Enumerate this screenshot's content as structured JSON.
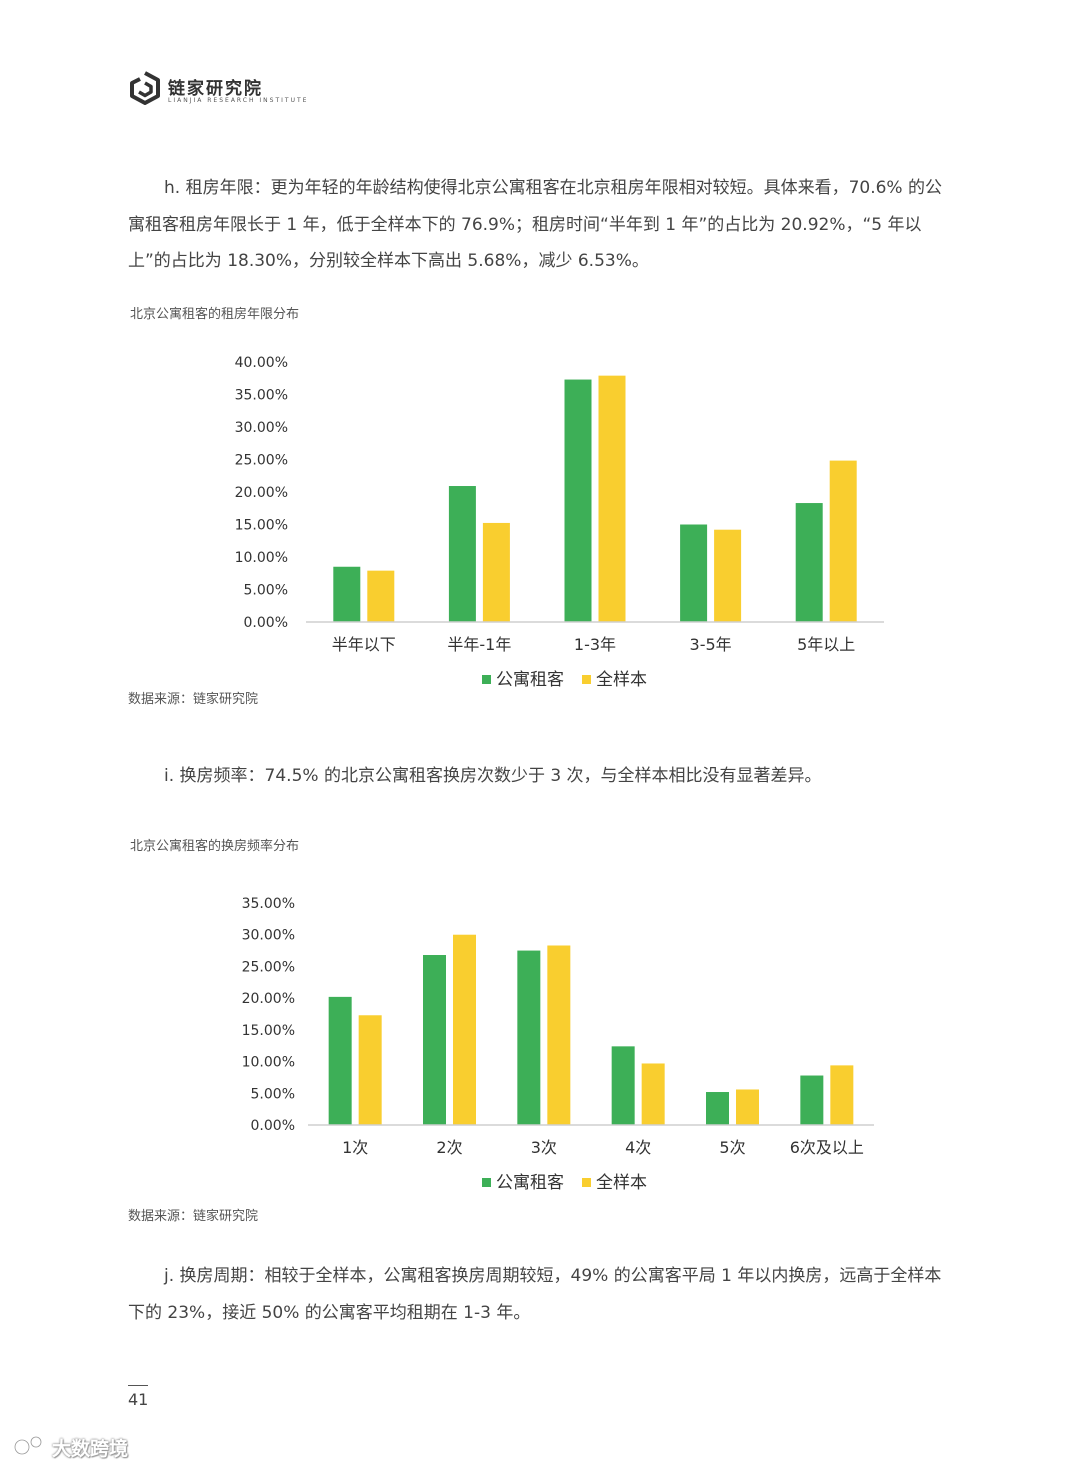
{
  "brand": {
    "title": "链家研究院",
    "subtitle": "LIANJIA RESEARCH INSTITUTE"
  },
  "sections": {
    "h": {
      "text": "h. 租房年限：更为年轻的年龄结构使得北京公寓租客在北京租房年限相对较短。具体来看，70.6% 的公寓租客租房年限长于 1 年，低于全样本下的 76.9%；租房时间“半年到 1 年”的占比为 20.92%，“5 年以上”的占比为 18.30%，分别较全样本下高出 5.68%，减少 6.53%。"
    },
    "i": {
      "text": "i. 换房频率：74.5% 的北京公寓租客换房次数少于 3 次，与全样本相比没有显著差异。"
    },
    "j": {
      "text": "j. 换房周期：相较于全样本，公寓租客换房周期较短，49% 的公寓客平局 1 年以内换房，远高于全样本下的 23%，接近 50% 的公寓客平均租期在 1-3 年。"
    }
  },
  "charts": {
    "c1": {
      "title": "北京公寓租客的租房年限分布",
      "source": "数据来源：链家研究院"
    },
    "c2": {
      "title": "北京公寓租客的换房频率分布",
      "source": "数据来源：链家研究院"
    }
  },
  "chart_data": [
    {
      "type": "bar",
      "title": "北京公寓租客的租房年限分布",
      "categories": [
        "半年以下",
        "半年-1年",
        "1-3年",
        "3-5年",
        "5年以上"
      ],
      "series": [
        {
          "name": "公寓租客",
          "values": [
            8.5,
            20.92,
            37.3,
            15.0,
            18.3
          ]
        },
        {
          "name": "全样本",
          "values": [
            7.9,
            15.24,
            37.9,
            14.2,
            24.83
          ]
        }
      ],
      "ylim": [
        0,
        40
      ],
      "yticks": [
        "0.00%",
        "5.00%",
        "10.00%",
        "15.00%",
        "20.00%",
        "25.00%",
        "30.00%",
        "35.00%",
        "40.00%"
      ],
      "grid": false,
      "legend": "bottom",
      "colors": [
        "#3daf57",
        "#f9ce2f"
      ]
    },
    {
      "type": "bar",
      "title": "北京公寓租客的换房频率分布",
      "categories": [
        "1次",
        "2次",
        "3次",
        "4次",
        "5次",
        "6次及以上"
      ],
      "series": [
        {
          "name": "公寓租客",
          "values": [
            20.2,
            26.8,
            27.5,
            12.4,
            5.2,
            7.8
          ]
        },
        {
          "name": "全样本",
          "values": [
            17.3,
            30.0,
            28.3,
            9.7,
            5.6,
            9.4
          ]
        }
      ],
      "ylim": [
        0,
        35
      ],
      "yticks": [
        "0.00%",
        "5.00%",
        "10.00%",
        "15.00%",
        "20.00%",
        "25.00%",
        "30.00%",
        "35.00%"
      ],
      "grid": false,
      "legend": "bottom",
      "colors": [
        "#3daf57",
        "#f9ce2f"
      ]
    }
  ],
  "page": {
    "number": "41"
  },
  "watermark": {
    "text": "大数跨境"
  }
}
